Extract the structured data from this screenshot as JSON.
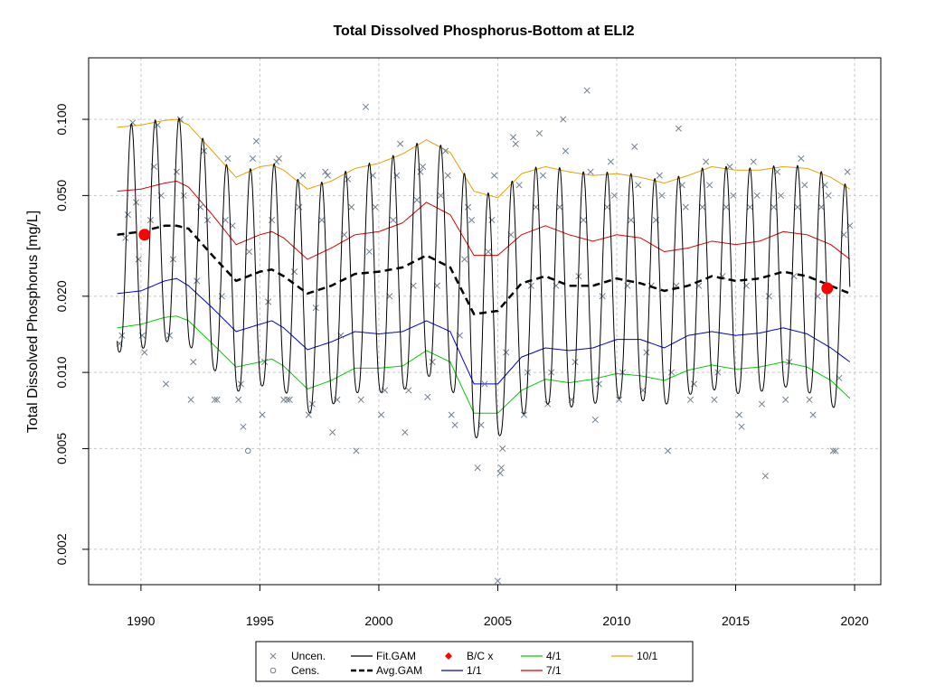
{
  "chart_data": {
    "type": "scatter",
    "title": "Total Dissolved Phosphorus-Bottom at ELI2",
    "xlabel": "",
    "ylabel": "Total Dissolved Phosphorus [mg/L]",
    "xlim": [
      1987.8,
      2021.1
    ],
    "ylim": [
      0.00145,
      0.175
    ],
    "yscale": "log",
    "grid": true,
    "legend_position": "bottom",
    "x_ticks": [
      1990,
      1995,
      2000,
      2005,
      2010,
      2015,
      2020
    ],
    "y_ticks": [
      0.002,
      0.005,
      0.01,
      0.02,
      0.05,
      0.1
    ],
    "y_tick_labels": [
      "0.002",
      "0.005",
      "0.010",
      "0.020",
      "0.050",
      "0.100"
    ],
    "legend": [
      {
        "label": "Uncen.",
        "kind": "x",
        "color": "#708090"
      },
      {
        "label": "Cens.",
        "kind": "o",
        "color": "#708090"
      },
      {
        "label": "Fit.GAM",
        "kind": "line",
        "color": "#000000"
      },
      {
        "label": "Avg.GAM",
        "kind": "dash",
        "color": "#000000"
      },
      {
        "label": "B/C x",
        "kind": "diamond",
        "color": "#ff0000"
      },
      {
        "label": "1/1",
        "kind": "line",
        "color": "#0000cd"
      },
      {
        "label": "4/1",
        "kind": "line",
        "color": "#00cc00"
      },
      {
        "label": "7/1",
        "kind": "line",
        "color": "#dd0000"
      },
      {
        "label": "10/1",
        "kind": "line",
        "color": "#e6a000"
      }
    ],
    "seasonal_lines": [
      {
        "name": "1/1",
        "color": "#0000cd",
        "x": [
          1989,
          1990,
          1991,
          1991.5,
          1992,
          1993,
          1994,
          1995,
          1995.5,
          1996,
          1997,
          1998,
          1999,
          2000,
          2001,
          2002,
          2003,
          2004,
          2005,
          2006,
          2007,
          2008,
          2009,
          2010,
          2011,
          2012,
          2013,
          2014,
          2015,
          2016,
          2017,
          2018,
          2019,
          2019.8
        ],
        "y": [
          0.0205,
          0.021,
          0.023,
          0.0235,
          0.022,
          0.018,
          0.0145,
          0.0155,
          0.016,
          0.015,
          0.0123,
          0.0132,
          0.0145,
          0.0142,
          0.0145,
          0.016,
          0.0145,
          0.009,
          0.009,
          0.0115,
          0.0125,
          0.0122,
          0.0125,
          0.0135,
          0.0135,
          0.0125,
          0.014,
          0.0145,
          0.014,
          0.0143,
          0.015,
          0.0142,
          0.0125,
          0.011
        ]
      },
      {
        "name": "4/1",
        "color": "#00cc00",
        "x": [
          1989,
          1990,
          1991,
          1991.5,
          1992,
          1993,
          1994,
          1995,
          1995.5,
          1996,
          1997,
          1998,
          1999,
          2000,
          2001,
          2002,
          2003,
          2004,
          2005,
          2006,
          2007,
          2008,
          2009,
          2010,
          2011,
          2012,
          2013,
          2014,
          2015,
          2016,
          2017,
          2018,
          2019,
          2019.8
        ],
        "y": [
          0.015,
          0.0155,
          0.0165,
          0.0167,
          0.016,
          0.013,
          0.0105,
          0.011,
          0.0113,
          0.0106,
          0.0086,
          0.0093,
          0.0104,
          0.0104,
          0.0106,
          0.0122,
          0.011,
          0.0069,
          0.0069,
          0.0085,
          0.0094,
          0.0091,
          0.0094,
          0.0099,
          0.0097,
          0.0093,
          0.0102,
          0.0107,
          0.0103,
          0.0105,
          0.011,
          0.0105,
          0.0093,
          0.0079
        ]
      },
      {
        "name": "7/1",
        "color": "#dd0000",
        "x": [
          1989,
          1990,
          1991,
          1991.5,
          1992,
          1993,
          1994,
          1995,
          1995.5,
          1996,
          1997,
          1998,
          1999,
          2000,
          2001,
          2002,
          2003,
          2004,
          2005,
          2006,
          2007,
          2008,
          2009,
          2010,
          2011,
          2012,
          2013,
          2014,
          2015,
          2016,
          2017,
          2018,
          2019,
          2019.8
        ],
        "y": [
          0.052,
          0.053,
          0.056,
          0.057,
          0.054,
          0.042,
          0.032,
          0.035,
          0.036,
          0.034,
          0.028,
          0.031,
          0.035,
          0.036,
          0.039,
          0.047,
          0.042,
          0.029,
          0.029,
          0.035,
          0.038,
          0.035,
          0.033,
          0.035,
          0.034,
          0.03,
          0.031,
          0.033,
          0.032,
          0.033,
          0.036,
          0.035,
          0.032,
          0.028
        ]
      },
      {
        "name": "10/1",
        "color": "#e6a000",
        "x": [
          1989,
          1990,
          1991,
          1991.5,
          1992,
          1993,
          1994,
          1995,
          1995.5,
          1996,
          1997,
          1998,
          1999,
          2000,
          2001,
          2002,
          2003,
          2004,
          2005,
          2006,
          2007,
          2008,
          2009,
          2010,
          2011,
          2012,
          2013,
          2014,
          2015,
          2016,
          2017,
          2018,
          2019,
          2019.8
        ],
        "y": [
          0.093,
          0.095,
          0.099,
          0.1,
          0.095,
          0.075,
          0.059,
          0.065,
          0.066,
          0.063,
          0.053,
          0.057,
          0.064,
          0.067,
          0.073,
          0.083,
          0.074,
          0.052,
          0.049,
          0.061,
          0.065,
          0.062,
          0.06,
          0.061,
          0.059,
          0.056,
          0.06,
          0.065,
          0.063,
          0.063,
          0.065,
          0.064,
          0.059,
          0.053
        ]
      }
    ],
    "avg_gam": {
      "name": "Avg.GAM",
      "color": "#000000",
      "x": [
        1989,
        1990,
        1991,
        1991.5,
        1992,
        1993,
        1994,
        1995,
        1995.5,
        1996,
        1997,
        1998,
        1999,
        2000,
        2001,
        2002,
        2003,
        2004,
        2005,
        2006,
        2007,
        2008,
        2009,
        2010,
        2011,
        2012,
        2013,
        2014,
        2015,
        2016,
        2017,
        2018,
        2019,
        2019.8
      ],
      "y": [
        0.035,
        0.036,
        0.038,
        0.038,
        0.037,
        0.029,
        0.023,
        0.025,
        0.0255,
        0.024,
        0.0205,
        0.022,
        0.0245,
        0.025,
        0.026,
        0.029,
        0.026,
        0.017,
        0.0175,
        0.0225,
        0.024,
        0.022,
        0.022,
        0.0235,
        0.0225,
        0.021,
        0.022,
        0.024,
        0.023,
        0.0235,
        0.025,
        0.024,
        0.022,
        0.0205
      ]
    },
    "fit_gam": {
      "name": "Fit.GAM",
      "color": "#000000",
      "x_start": 1989.0,
      "x_end": 2019.8,
      "cycles_per_year": 1,
      "peak_phase": 0.58,
      "trough_phase": 0.1
    },
    "bc_points": [
      {
        "x": 1990.15,
        "y": 0.035
      },
      {
        "x": 2018.85,
        "y": 0.0215
      }
    ],
    "censored": [
      {
        "x": 1994.5,
        "y": 0.0049
      }
    ],
    "uncensored": [
      {
        "x": 1989.1,
        "y": 0.013
      },
      {
        "x": 1989.2,
        "y": 0.014
      },
      {
        "x": 1989.35,
        "y": 0.034
      },
      {
        "x": 1989.45,
        "y": 0.042
      },
      {
        "x": 1989.65,
        "y": 0.097
      },
      {
        "x": 1989.8,
        "y": 0.047
      },
      {
        "x": 1989.9,
        "y": 0.028
      },
      {
        "x": 1990.05,
        "y": 0.014
      },
      {
        "x": 1990.15,
        "y": 0.012
      },
      {
        "x": 1990.4,
        "y": 0.04
      },
      {
        "x": 1990.55,
        "y": 0.065
      },
      {
        "x": 1990.7,
        "y": 0.095
      },
      {
        "x": 1990.85,
        "y": 0.05
      },
      {
        "x": 1991.05,
        "y": 0.009
      },
      {
        "x": 1991.2,
        "y": 0.014
      },
      {
        "x": 1991.35,
        "y": 0.028
      },
      {
        "x": 1991.5,
        "y": 0.062
      },
      {
        "x": 1991.65,
        "y": 0.1
      },
      {
        "x": 1991.8,
        "y": 0.05
      },
      {
        "x": 1992.1,
        "y": 0.0078
      },
      {
        "x": 1992.2,
        "y": 0.011
      },
      {
        "x": 1992.35,
        "y": 0.023
      },
      {
        "x": 1992.5,
        "y": 0.045
      },
      {
        "x": 1992.65,
        "y": 0.075
      },
      {
        "x": 1992.8,
        "y": 0.04
      },
      {
        "x": 1993.1,
        "y": 0.0078
      },
      {
        "x": 1993.2,
        "y": 0.0078
      },
      {
        "x": 1993.4,
        "y": 0.02
      },
      {
        "x": 1993.55,
        "y": 0.04
      },
      {
        "x": 1993.65,
        "y": 0.07
      },
      {
        "x": 1993.85,
        "y": 0.038
      },
      {
        "x": 1994.1,
        "y": 0.0078
      },
      {
        "x": 1994.2,
        "y": 0.009
      },
      {
        "x": 1994.3,
        "y": 0.0061
      },
      {
        "x": 1994.55,
        "y": 0.03
      },
      {
        "x": 1994.7,
        "y": 0.07
      },
      {
        "x": 1994.85,
        "y": 0.082
      },
      {
        "x": 1995.1,
        "y": 0.0068
      },
      {
        "x": 1995.2,
        "y": 0.011
      },
      {
        "x": 1995.35,
        "y": 0.019
      },
      {
        "x": 1995.5,
        "y": 0.04
      },
      {
        "x": 1995.7,
        "y": 0.068
      },
      {
        "x": 1995.8,
        "y": 0.07
      },
      {
        "x": 1996,
        "y": 0.0078
      },
      {
        "x": 1996.15,
        "y": 0.0078
      },
      {
        "x": 1996.25,
        "y": 0.0078
      },
      {
        "x": 1996.45,
        "y": 0.025
      },
      {
        "x": 1996.65,
        "y": 0.045
      },
      {
        "x": 1996.8,
        "y": 0.06
      },
      {
        "x": 1997.05,
        "y": 0.0068
      },
      {
        "x": 1997.2,
        "y": 0.0075
      },
      {
        "x": 1997.35,
        "y": 0.018
      },
      {
        "x": 1997.6,
        "y": 0.04
      },
      {
        "x": 1997.75,
        "y": 0.062
      },
      {
        "x": 1997.85,
        "y": 0.06
      },
      {
        "x": 1998.05,
        "y": 0.0058
      },
      {
        "x": 1998.25,
        "y": 0.0078
      },
      {
        "x": 1998.4,
        "y": 0.014
      },
      {
        "x": 1998.55,
        "y": 0.035
      },
      {
        "x": 1998.7,
        "y": 0.058
      },
      {
        "x": 1998.85,
        "y": 0.045
      },
      {
        "x": 1999.05,
        "y": 0.0049
      },
      {
        "x": 1999.25,
        "y": 0.0078
      },
      {
        "x": 1999.45,
        "y": 0.112
      },
      {
        "x": 1999.6,
        "y": 0.03
      },
      {
        "x": 1999.75,
        "y": 0.06
      },
      {
        "x": 1999.85,
        "y": 0.045
      },
      {
        "x": 2000.1,
        "y": 0.0068
      },
      {
        "x": 2000.25,
        "y": 0.0085
      },
      {
        "x": 2000.45,
        "y": 0.02
      },
      {
        "x": 2000.6,
        "y": 0.04
      },
      {
        "x": 2000.75,
        "y": 0.06
      },
      {
        "x": 2000.9,
        "y": 0.08
      },
      {
        "x": 2001.1,
        "y": 0.0058
      },
      {
        "x": 2001.25,
        "y": 0.0085
      },
      {
        "x": 2001.45,
        "y": 0.022
      },
      {
        "x": 2001.6,
        "y": 0.048
      },
      {
        "x": 2001.75,
        "y": 0.062
      },
      {
        "x": 2001.85,
        "y": 0.065
      },
      {
        "x": 2002.05,
        "y": 0.008
      },
      {
        "x": 2002.25,
        "y": 0.011
      },
      {
        "x": 2002.45,
        "y": 0.022
      },
      {
        "x": 2002.6,
        "y": 0.05
      },
      {
        "x": 2002.8,
        "y": 0.075
      },
      {
        "x": 2002.9,
        "y": 0.06
      },
      {
        "x": 2003.05,
        "y": 0.0068
      },
      {
        "x": 2003.2,
        "y": 0.0062
      },
      {
        "x": 2003.4,
        "y": 0.014
      },
      {
        "x": 2003.6,
        "y": 0.028
      },
      {
        "x": 2003.75,
        "y": 0.045
      },
      {
        "x": 2003.9,
        "y": 0.04
      },
      {
        "x": 2004.15,
        "y": 0.0042
      },
      {
        "x": 2004.3,
        "y": 0.0062
      },
      {
        "x": 2004.45,
        "y": 0.009
      },
      {
        "x": 2004.6,
        "y": 0.03
      },
      {
        "x": 2004.75,
        "y": 0.04
      },
      {
        "x": 2004.85,
        "y": 0.06
      },
      {
        "x": 2005.0,
        "y": 0.0015
      },
      {
        "x": 2005.1,
        "y": 0.004
      },
      {
        "x": 2005.15,
        "y": 0.0042
      },
      {
        "x": 2005.2,
        "y": 0.005
      },
      {
        "x": 2005.35,
        "y": 0.012
      },
      {
        "x": 2005.55,
        "y": 0.035
      },
      {
        "x": 2005.65,
        "y": 0.085
      },
      {
        "x": 2005.75,
        "y": 0.08
      },
      {
        "x": 2005.9,
        "y": 0.055
      },
      {
        "x": 2006.1,
        "y": 0.0068
      },
      {
        "x": 2006.25,
        "y": 0.01
      },
      {
        "x": 2006.4,
        "y": 0.022
      },
      {
        "x": 2006.6,
        "y": 0.045
      },
      {
        "x": 2006.75,
        "y": 0.088
      },
      {
        "x": 2006.9,
        "y": 0.06
      },
      {
        "x": 2007.1,
        "y": 0.0075
      },
      {
        "x": 2007.25,
        "y": 0.01
      },
      {
        "x": 2007.45,
        "y": 0.022
      },
      {
        "x": 2007.6,
        "y": 0.045
      },
      {
        "x": 2007.75,
        "y": 0.1
      },
      {
        "x": 2007.85,
        "y": 0.075
      },
      {
        "x": 2008.1,
        "y": 0.0078
      },
      {
        "x": 2008.25,
        "y": 0.011
      },
      {
        "x": 2008.4,
        "y": 0.024
      },
      {
        "x": 2008.6,
        "y": 0.04
      },
      {
        "x": 2008.75,
        "y": 0.13
      },
      {
        "x": 2008.9,
        "y": 0.062
      },
      {
        "x": 2009.1,
        "y": 0.0065
      },
      {
        "x": 2009.25,
        "y": 0.009
      },
      {
        "x": 2009.4,
        "y": 0.02
      },
      {
        "x": 2009.6,
        "y": 0.045
      },
      {
        "x": 2009.75,
        "y": 0.068
      },
      {
        "x": 2009.9,
        "y": 0.05
      },
      {
        "x": 2010.1,
        "y": 0.0078
      },
      {
        "x": 2010.25,
        "y": 0.01
      },
      {
        "x": 2010.45,
        "y": 0.022
      },
      {
        "x": 2010.6,
        "y": 0.04
      },
      {
        "x": 2010.75,
        "y": 0.078
      },
      {
        "x": 2010.9,
        "y": 0.055
      },
      {
        "x": 2011.1,
        "y": 0.0085
      },
      {
        "x": 2011.25,
        "y": 0.012
      },
      {
        "x": 2011.45,
        "y": 0.022
      },
      {
        "x": 2011.65,
        "y": 0.04
      },
      {
        "x": 2011.8,
        "y": 0.06
      },
      {
        "x": 2011.9,
        "y": 0.05
      },
      {
        "x": 2012.15,
        "y": 0.0049
      },
      {
        "x": 2012.3,
        "y": 0.01
      },
      {
        "x": 2012.5,
        "y": 0.022
      },
      {
        "x": 2012.6,
        "y": 0.092
      },
      {
        "x": 2012.75,
        "y": 0.055
      },
      {
        "x": 2012.9,
        "y": 0.045
      },
      {
        "x": 2013.1,
        "y": 0.0078
      },
      {
        "x": 2013.25,
        "y": 0.009
      },
      {
        "x": 2013.45,
        "y": 0.022
      },
      {
        "x": 2013.6,
        "y": 0.045
      },
      {
        "x": 2013.75,
        "y": 0.068
      },
      {
        "x": 2013.9,
        "y": 0.055
      },
      {
        "x": 2014.1,
        "y": 0.0078
      },
      {
        "x": 2014.25,
        "y": 0.01
      },
      {
        "x": 2014.45,
        "y": 0.024
      },
      {
        "x": 2014.6,
        "y": 0.045
      },
      {
        "x": 2014.75,
        "y": 0.065
      },
      {
        "x": 2014.9,
        "y": 0.05
      },
      {
        "x": 2015.15,
        "y": 0.0068
      },
      {
        "x": 2015.25,
        "y": 0.0061
      },
      {
        "x": 2015.45,
        "y": 0.022
      },
      {
        "x": 2015.6,
        "y": 0.045
      },
      {
        "x": 2015.75,
        "y": 0.068
      },
      {
        "x": 2015.9,
        "y": 0.05
      },
      {
        "x": 2016.1,
        "y": 0.0075
      },
      {
        "x": 2016.25,
        "y": 0.0039
      },
      {
        "x": 2016.4,
        "y": 0.02
      },
      {
        "x": 2016.6,
        "y": 0.045
      },
      {
        "x": 2016.75,
        "y": 0.062
      },
      {
        "x": 2016.9,
        "y": 0.05
      },
      {
        "x": 2017.1,
        "y": 0.0078
      },
      {
        "x": 2017.25,
        "y": 0.011
      },
      {
        "x": 2017.45,
        "y": 0.024
      },
      {
        "x": 2017.6,
        "y": 0.045
      },
      {
        "x": 2017.75,
        "y": 0.07
      },
      {
        "x": 2017.9,
        "y": 0.055
      },
      {
        "x": 2018.1,
        "y": 0.0078
      },
      {
        "x": 2018.25,
        "y": 0.0068
      },
      {
        "x": 2018.45,
        "y": 0.02
      },
      {
        "x": 2018.6,
        "y": 0.045
      },
      {
        "x": 2018.75,
        "y": 0.055
      },
      {
        "x": 2018.9,
        "y": 0.05
      },
      {
        "x": 2019.1,
        "y": 0.0049
      },
      {
        "x": 2019.2,
        "y": 0.0049
      },
      {
        "x": 2019.35,
        "y": 0.0095
      },
      {
        "x": 2019.55,
        "y": 0.035
      },
      {
        "x": 2019.7,
        "y": 0.062
      },
      {
        "x": 2019.8,
        "y": 0.038
      }
    ]
  }
}
